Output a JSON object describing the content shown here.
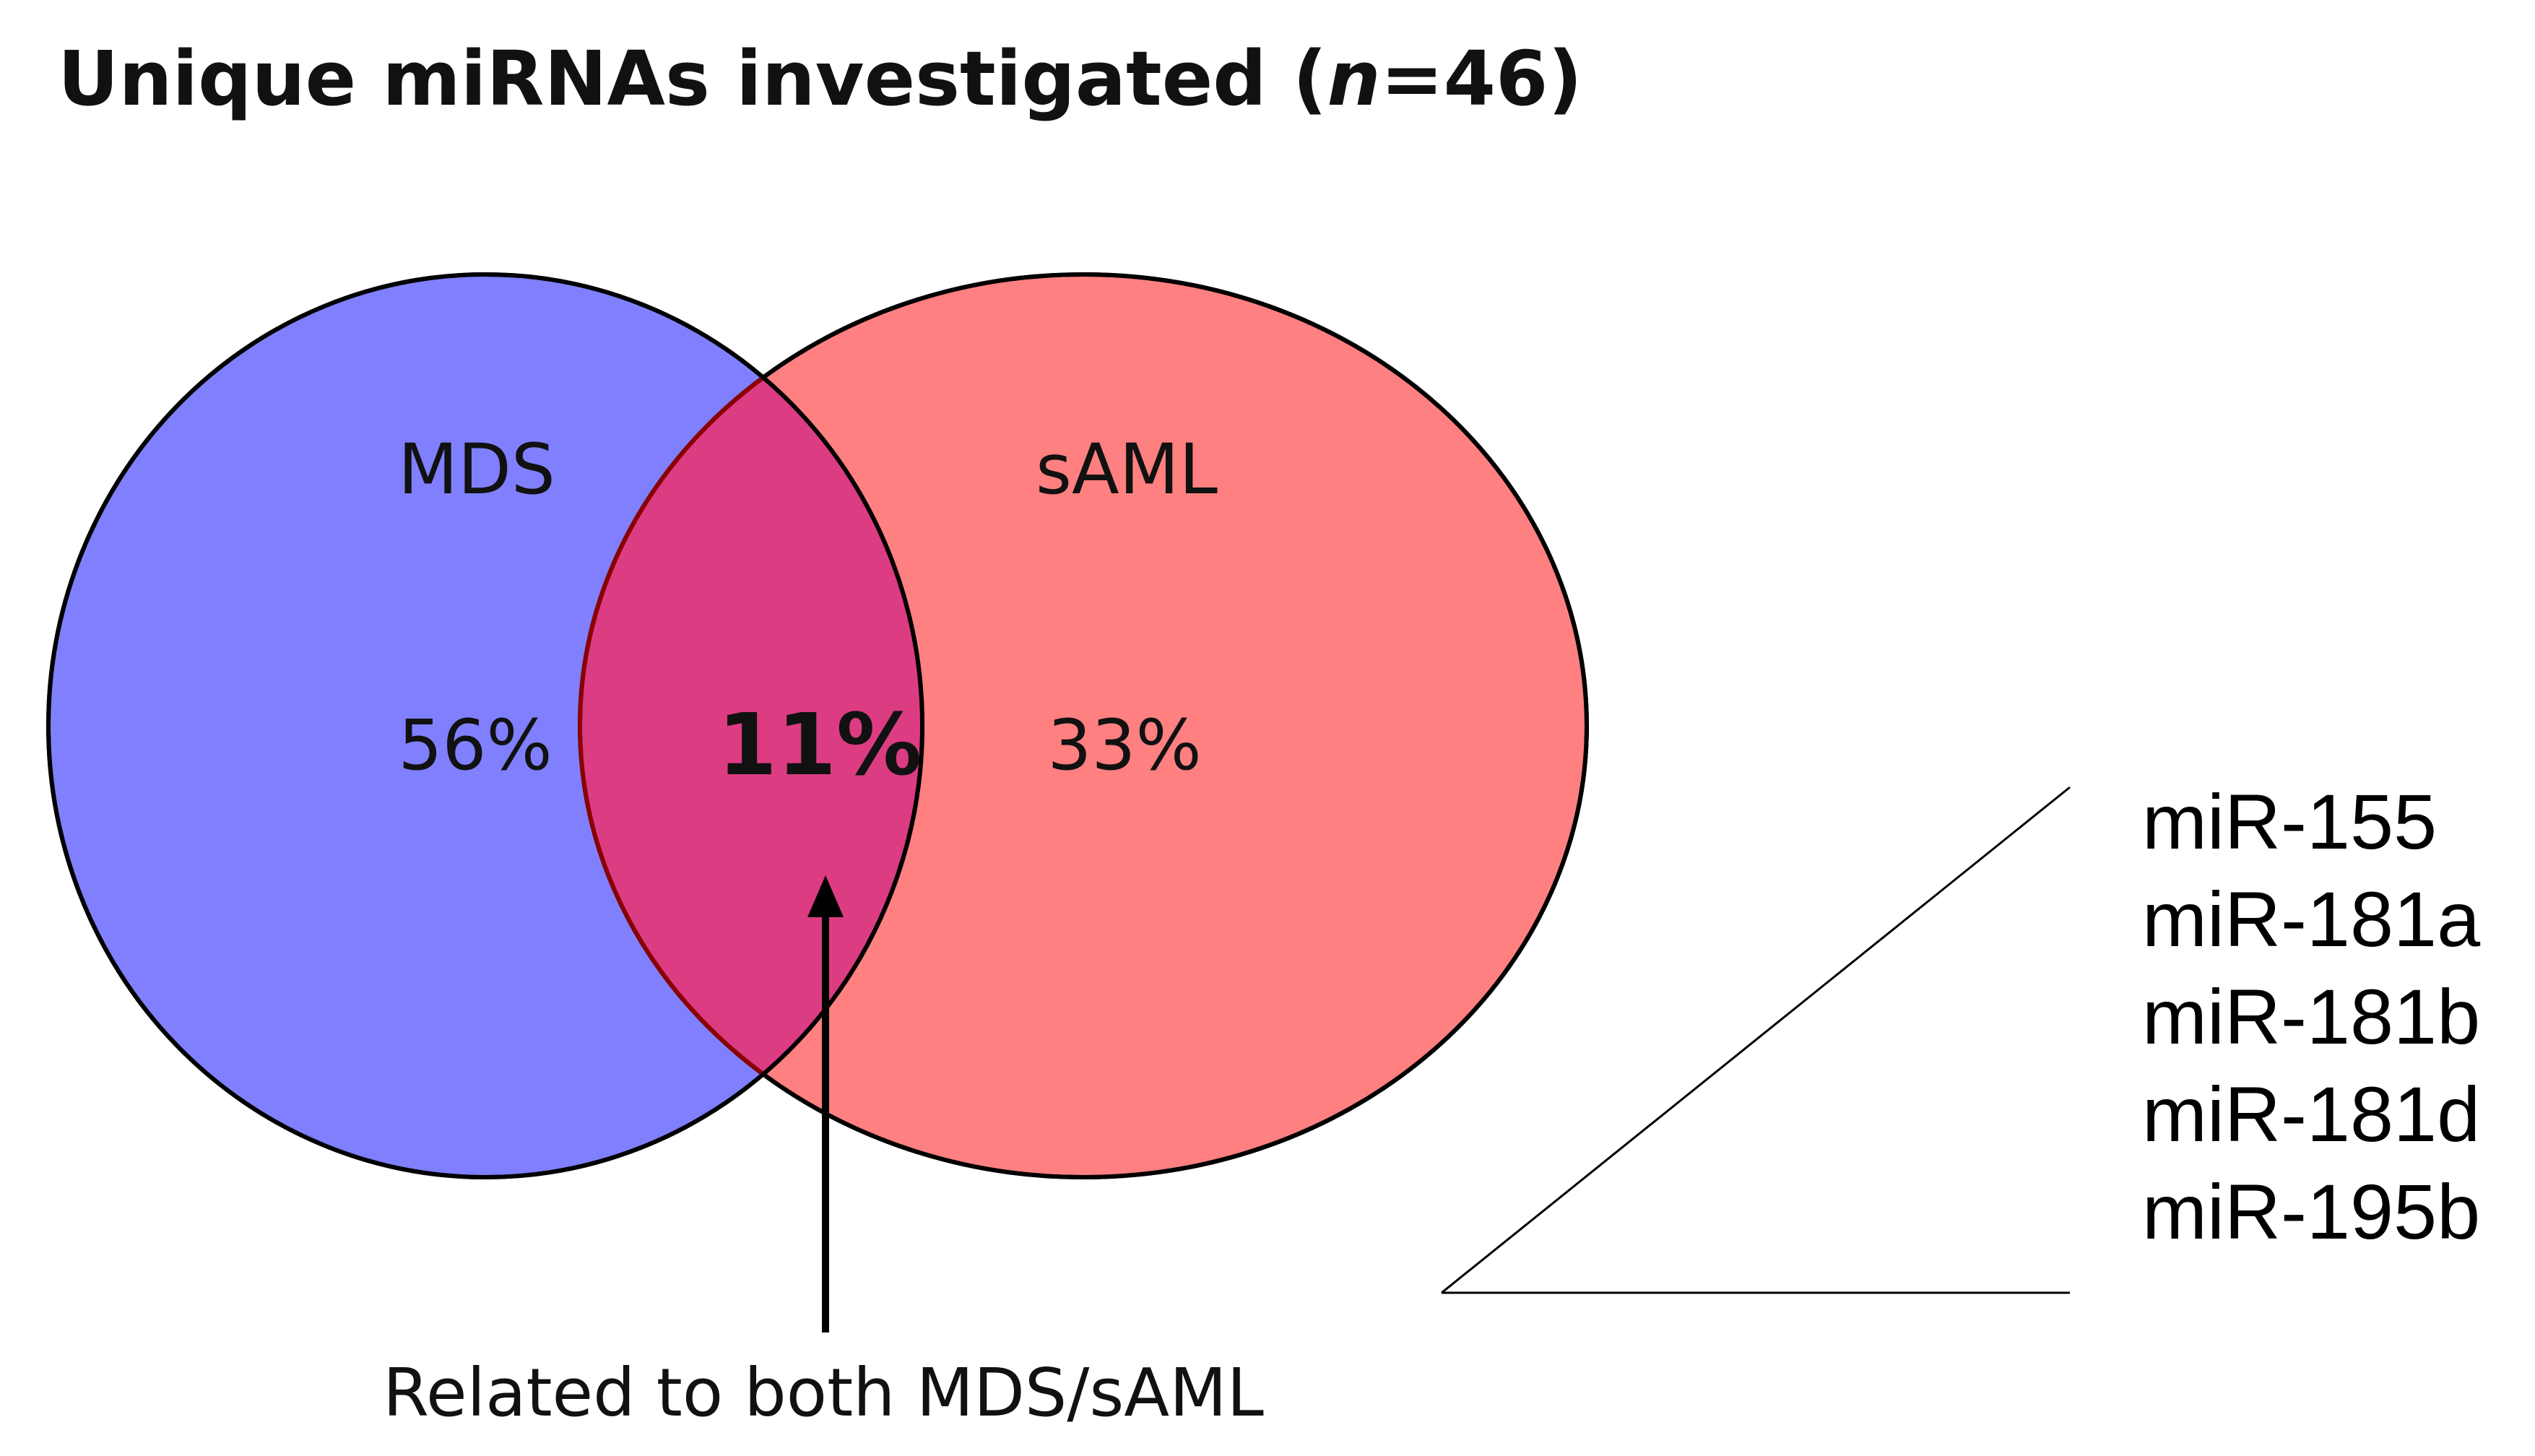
{
  "title": {
    "prefix": "Unique miRNAs investigated (",
    "italic": "n",
    "suffix": "=46)"
  },
  "colors": {
    "set_left": "#8080ff",
    "set_right": "#ff8080",
    "overlap": "#dc3c82",
    "outline": "#000000",
    "overlap_outline": "#8b0000"
  },
  "sets": [
    {
      "label": "MDS",
      "share": "56%"
    },
    {
      "label": "sAML",
      "share": "33%"
    }
  ],
  "overlap": {
    "share": "11%",
    "caption": "Related to both MDS/sAML",
    "mirnas": [
      "miR-155",
      "miR-181a",
      "miR-181b",
      "miR-181d",
      "miR-195b"
    ]
  }
}
